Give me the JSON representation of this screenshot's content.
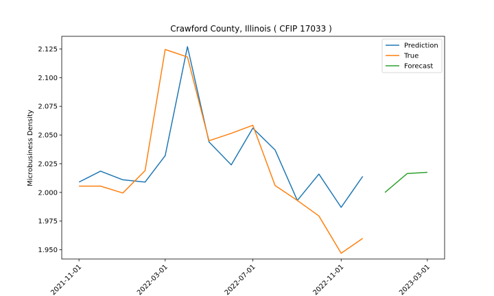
{
  "chart_data": {
    "type": "line",
    "title": "Crawford County, Illinois ( CFIP 17033 )",
    "xlabel": "",
    "ylabel": "Microbusiness Density",
    "x_tick_labels": [
      "2021-11-01",
      "2022-03-01",
      "2022-07-01",
      "2022-11-01",
      "2023-03-01"
    ],
    "x_ticks": [
      "2021-11-01",
      "2022-03-01",
      "2022-07-01",
      "2022-11-01",
      "2023-03-01"
    ],
    "y_tick_labels": [
      "1.950",
      "1.975",
      "2.000",
      "2.025",
      "2.050",
      "2.075",
      "2.100",
      "2.125"
    ],
    "y_ticks": [
      1.95,
      1.975,
      2.0,
      2.025,
      2.05,
      2.075,
      2.1,
      2.125
    ],
    "xlim": [
      "2021-10-08",
      "2023-03-25"
    ],
    "ylim": [
      1.942,
      2.136
    ],
    "legend_position": "top-right",
    "grid": false,
    "series": [
      {
        "name": "Prediction",
        "color": "#1f77b4",
        "x": [
          "2021-11-01",
          "2021-12-01",
          "2022-01-01",
          "2022-02-01",
          "2022-03-01",
          "2022-04-01",
          "2022-05-01",
          "2022-06-01",
          "2022-07-01",
          "2022-08-01",
          "2022-09-01",
          "2022-10-01",
          "2022-11-01",
          "2022-12-01"
        ],
        "values": [
          2.009,
          2.0185,
          2.011,
          2.009,
          2.032,
          2.127,
          2.044,
          2.024,
          2.056,
          2.037,
          1.993,
          2.016,
          1.987,
          2.014
        ]
      },
      {
        "name": "True",
        "color": "#ff7f0e",
        "x": [
          "2021-11-01",
          "2021-12-01",
          "2022-01-01",
          "2022-02-01",
          "2022-03-01",
          "2022-04-01",
          "2022-05-01",
          "2022-06-01",
          "2022-07-01",
          "2022-08-01",
          "2022-09-01",
          "2022-10-01",
          "2022-11-01",
          "2022-12-01"
        ],
        "values": [
          2.0055,
          2.0055,
          1.9995,
          2.019,
          2.1245,
          2.118,
          2.045,
          2.0515,
          2.0585,
          2.006,
          1.993,
          1.9795,
          1.947,
          1.96
        ]
      },
      {
        "name": "Forecast",
        "color": "#2ca02c",
        "x": [
          "2023-01-01",
          "2023-02-01",
          "2023-03-01"
        ],
        "values": [
          2.0,
          2.0165,
          2.0175
        ]
      }
    ]
  }
}
